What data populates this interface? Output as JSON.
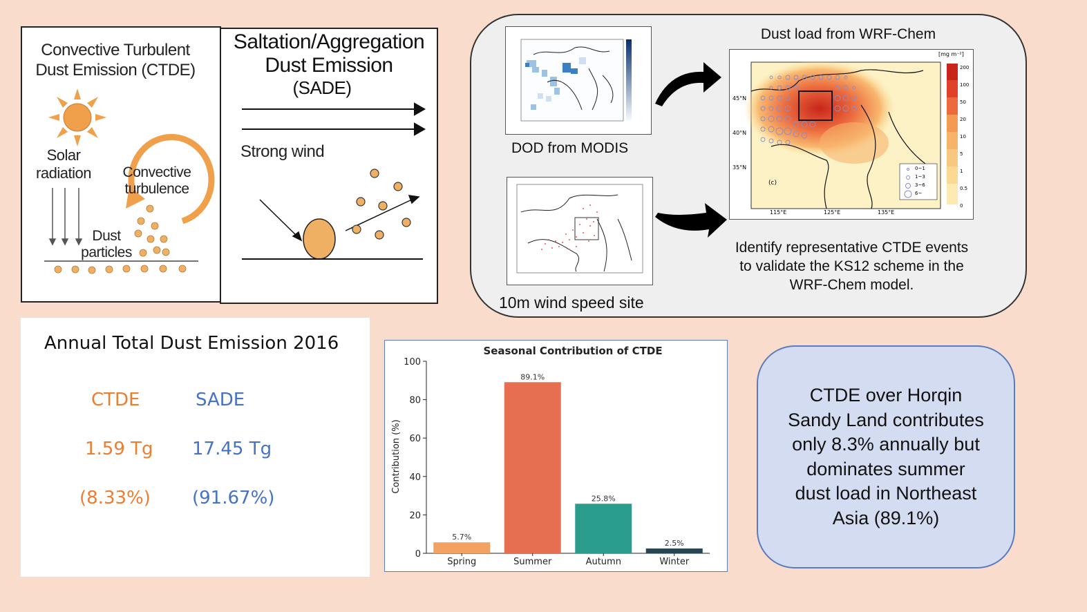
{
  "ctde": {
    "title_line1": "Convective Turbulent",
    "title_line2": "Dust Emission (CTDE)",
    "solar_line1": "Solar",
    "solar_line2": "radiation",
    "conv_line1": "Convective",
    "conv_line2": "turbulence",
    "dust_line1": "Dust",
    "dust_line2": "particles",
    "colors": {
      "sun": "#f0a04b",
      "particle": "#f0b064",
      "arrow": "#f0a04b"
    }
  },
  "sade": {
    "title_line1": "Saltation/Aggregation",
    "title_line2": "Dust Emission",
    "title_line3": "(SADE)",
    "wind_label": "Strong wind"
  },
  "workflow": {
    "map1_caption": "DOD from MODIS",
    "map2_caption": "10m wind speed site",
    "map3_title": "Dust load from WRF-Chem",
    "map3_unit": "[mg m⁻²]",
    "map3_panel": "(c)",
    "map3_lat_labels": [
      "45°N",
      "40°N",
      "35°N"
    ],
    "map3_lon_labels": [
      "115°E",
      "125°E",
      "135°E"
    ],
    "map3_colorbar_labels": [
      "200",
      "100",
      "50",
      "20",
      "10",
      "5",
      "1",
      "0.5",
      "0"
    ],
    "map3_legend": [
      "0~1",
      "1~3",
      "3~6",
      "6~"
    ],
    "identify_line1": "Identify representative CTDE events",
    "identify_line2": "to validate the KS12 scheme in the",
    "identify_line3": "WRF-Chem model."
  },
  "annual": {
    "title": "Annual Total Dust Emission 2016",
    "ctde_label": "CTDE",
    "sade_label": "SADE",
    "ctde_value": "1.59 Tg",
    "sade_value": "17.45 Tg",
    "ctde_pct": "(8.33%)",
    "sade_pct": "(91.67%)",
    "ctde_color": "#ed7d31",
    "sade_color": "#4472c4"
  },
  "chart_data": {
    "type": "bar",
    "title": "Seasonal Contribution of CTDE",
    "ylabel": "Contribution (%)",
    "xlabel": "",
    "categories": [
      "Spring",
      "Summer",
      "Autumn",
      "Winter"
    ],
    "values": [
      5.7,
      89.1,
      25.8,
      2.5
    ],
    "value_labels": [
      "5.7%",
      "89.1%",
      "25.8%",
      "2.5%"
    ],
    "colors": [
      "#f4a261",
      "#e76f51",
      "#2a9d8f",
      "#264653"
    ],
    "ylim": [
      0,
      100
    ],
    "yticks": [
      0,
      20,
      40,
      60,
      80,
      100
    ],
    "grid": false
  },
  "summary": {
    "line1": "CTDE over Horqin",
    "line2": "Sandy Land contributes",
    "line3": "only 8.3% annually but",
    "line4": "dominates summer",
    "line5": "dust load in Northeast",
    "line6": "Asia (89.1%)"
  }
}
